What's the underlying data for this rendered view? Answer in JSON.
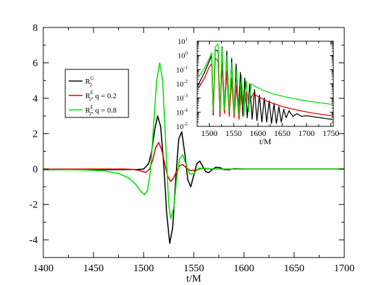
{
  "chart_data": [
    {
      "type": "line",
      "xlabel": "t/M",
      "ylabel": "",
      "xlim": [
        1400,
        1700
      ],
      "ylim": [
        -5,
        8
      ],
      "xticks": [
        1400,
        1450,
        1500,
        1550,
        1600,
        1650,
        1700
      ],
      "yticks": [
        -4,
        -2,
        0,
        2,
        4,
        6,
        8
      ],
      "legend_position": "middle-left",
      "series": [
        {
          "name": "R^G_2",
          "legend": {
            "base": "R",
            "sup": "G",
            "sub": "2",
            "suffix": ""
          },
          "color": "#000000",
          "points": [
            [
              1400,
              -0.04
            ],
            [
              1450,
              -0.04
            ],
            [
              1480,
              -0.03
            ],
            [
              1495,
              -0.02
            ],
            [
              1500,
              0.0
            ],
            [
              1505,
              0.3
            ],
            [
              1508,
              1.0
            ],
            [
              1511,
              2.2
            ],
            [
              1514,
              3.0
            ],
            [
              1517,
              2.4
            ],
            [
              1520,
              0.3
            ],
            [
              1523,
              -2.5
            ],
            [
              1526,
              -4.2
            ],
            [
              1529,
              -3.3
            ],
            [
              1532,
              -0.6
            ],
            [
              1535,
              1.7
            ],
            [
              1538,
              2.1
            ],
            [
              1541,
              0.9
            ],
            [
              1544,
              -0.6
            ],
            [
              1547,
              -1.0
            ],
            [
              1550,
              -0.35
            ],
            [
              1553,
              0.3
            ],
            [
              1556,
              0.45
            ],
            [
              1559,
              0.15
            ],
            [
              1562,
              -0.15
            ],
            [
              1565,
              -0.2
            ],
            [
              1568,
              -0.05
            ],
            [
              1572,
              0.1
            ],
            [
              1576,
              0.08
            ],
            [
              1580,
              -0.03
            ],
            [
              1585,
              -0.04
            ],
            [
              1590,
              0.02
            ],
            [
              1600,
              0.0
            ],
            [
              1700,
              0.0
            ]
          ]
        },
        {
          "name": "R^E_2, q = 0.2",
          "legend": {
            "base": "R",
            "sup": "E",
            "sub": "2",
            "suffix": ", q = 0.2"
          },
          "color": "#e00000",
          "points": [
            [
              1400,
              0.0
            ],
            [
              1480,
              0.0
            ],
            [
              1490,
              -0.02
            ],
            [
              1497,
              -0.1
            ],
            [
              1502,
              -0.2
            ],
            [
              1506,
              0.0
            ],
            [
              1509,
              0.5
            ],
            [
              1512,
              1.2
            ],
            [
              1515,
              1.5
            ],
            [
              1518,
              1.1
            ],
            [
              1521,
              0.3
            ],
            [
              1524,
              -0.4
            ],
            [
              1527,
              -0.7
            ],
            [
              1530,
              -0.5
            ],
            [
              1533,
              -0.1
            ],
            [
              1536,
              0.2
            ],
            [
              1539,
              0.25
            ],
            [
              1543,
              0.05
            ],
            [
              1547,
              -0.1
            ],
            [
              1552,
              -0.05
            ],
            [
              1558,
              0.03
            ],
            [
              1570,
              0.0
            ],
            [
              1700,
              0.0
            ]
          ]
        },
        {
          "name": "R^E_2, q = 0.8",
          "legend": {
            "base": "R",
            "sup": "E",
            "sub": "2",
            "suffix": ", q = 0.8"
          },
          "color": "#00e000",
          "points": [
            [
              1400,
              -0.02
            ],
            [
              1440,
              -0.05
            ],
            [
              1460,
              -0.1
            ],
            [
              1475,
              -0.25
            ],
            [
              1485,
              -0.5
            ],
            [
              1492,
              -0.85
            ],
            [
              1497,
              -1.25
            ],
            [
              1501,
              -1.45
            ],
            [
              1504,
              -1.2
            ],
            [
              1507,
              0.0
            ],
            [
              1510,
              2.5
            ],
            [
              1513,
              5.0
            ],
            [
              1516,
              6.0
            ],
            [
              1519,
              5.0
            ],
            [
              1522,
              1.5
            ],
            [
              1525,
              -2.0
            ],
            [
              1527,
              -2.8
            ],
            [
              1530,
              -2.2
            ],
            [
              1533,
              -0.5
            ],
            [
              1536,
              0.6
            ],
            [
              1539,
              0.8
            ],
            [
              1542,
              0.3
            ],
            [
              1546,
              -0.3
            ],
            [
              1550,
              -0.25
            ],
            [
              1555,
              0.05
            ],
            [
              1560,
              0.05
            ],
            [
              1570,
              0.0
            ],
            [
              1700,
              0.0
            ]
          ]
        }
      ]
    },
    {
      "type": "line",
      "xlabel": "t/M",
      "ylabel": "",
      "xlim": [
        1475,
        1755
      ],
      "ylim": [
        -5,
        1
      ],
      "yscale": "log",
      "xticks": [
        1500,
        1550,
        1600,
        1650,
        1700,
        1750
      ],
      "yticks": [
        -5,
        -4,
        -3,
        -2,
        -1,
        0,
        1
      ],
      "series": [
        {
          "color": "#000000",
          "points": [
            [
              1478,
              -2.0
            ],
            [
              1490,
              -1.2
            ],
            [
              1500,
              -0.4
            ],
            [
              1505,
              0.0
            ],
            [
              1508,
              -4.2
            ],
            [
              1512,
              0.4
            ],
            [
              1518,
              0.3
            ],
            [
              1522,
              -4.3
            ],
            [
              1526,
              0.6
            ],
            [
              1531,
              -3.9
            ],
            [
              1536,
              0.3
            ],
            [
              1541,
              -4.2
            ],
            [
              1546,
              -0.2
            ],
            [
              1551,
              -4.3
            ],
            [
              1555,
              -0.6
            ],
            [
              1560,
              -4.1
            ],
            [
              1564,
              -1.2
            ],
            [
              1569,
              -4.3
            ],
            [
              1573,
              -1.6
            ],
            [
              1578,
              -4.4
            ],
            [
              1583,
              -2.0
            ],
            [
              1588,
              -4.5
            ],
            [
              1593,
              -2.4
            ],
            [
              1598,
              -4.6
            ],
            [
              1603,
              -2.8
            ],
            [
              1608,
              -4.7
            ],
            [
              1613,
              -3.0
            ],
            [
              1618,
              -4.7
            ],
            [
              1623,
              -3.2
            ],
            [
              1628,
              -4.8
            ],
            [
              1633,
              -3.4
            ],
            [
              1638,
              -4.8
            ],
            [
              1643,
              -3.6
            ],
            [
              1648,
              -4.7
            ],
            [
              1653,
              -3.8
            ],
            [
              1658,
              -4.4
            ],
            [
              1664,
              -3.9
            ],
            [
              1672,
              -4.3
            ],
            [
              1680,
              -4.1
            ],
            [
              1690,
              -4.3
            ],
            [
              1700,
              -4.25
            ],
            [
              1720,
              -4.35
            ],
            [
              1740,
              -4.45
            ],
            [
              1752,
              -4.5
            ]
          ]
        },
        {
          "color": "#e00000",
          "points": [
            [
              1478,
              -2.3
            ],
            [
              1490,
              -1.6
            ],
            [
              1500,
              -0.8
            ],
            [
              1505,
              -0.6
            ],
            [
              1508,
              -4.0
            ],
            [
              1512,
              -0.2
            ],
            [
              1518,
              -0.4
            ],
            [
              1522,
              -4.2
            ],
            [
              1526,
              -0.6
            ],
            [
              1531,
              -4.1
            ],
            [
              1536,
              -1.1
            ],
            [
              1541,
              -4.3
            ],
            [
              1546,
              -1.6
            ],
            [
              1551,
              -4.4
            ],
            [
              1556,
              -2.1
            ],
            [
              1561,
              -4.5
            ],
            [
              1566,
              -2.4
            ],
            [
              1571,
              -3.8
            ],
            [
              1576,
              -2.6
            ],
            [
              1581,
              -3.4
            ],
            [
              1590,
              -2.7
            ],
            [
              1600,
              -2.9
            ],
            [
              1620,
              -3.25
            ],
            [
              1650,
              -3.6
            ],
            [
              1680,
              -3.85
            ],
            [
              1710,
              -4.05
            ],
            [
              1740,
              -4.2
            ],
            [
              1752,
              -4.25
            ]
          ]
        },
        {
          "color": "#00e000",
          "points": [
            [
              1478,
              -1.5
            ],
            [
              1490,
              -0.9
            ],
            [
              1500,
              -0.2
            ],
            [
              1505,
              0.2
            ],
            [
              1508,
              -3.8
            ],
            [
              1512,
              0.6
            ],
            [
              1518,
              0.8
            ],
            [
              1522,
              -3.9
            ],
            [
              1526,
              0.5
            ],
            [
              1531,
              -3.8
            ],
            [
              1536,
              0.0
            ],
            [
              1541,
              -4.0
            ],
            [
              1546,
              -0.5
            ],
            [
              1551,
              -4.1
            ],
            [
              1556,
              -1.0
            ],
            [
              1561,
              -4.2
            ],
            [
              1566,
              -1.4
            ],
            [
              1571,
              -4.2
            ],
            [
              1576,
              -1.8
            ],
            [
              1581,
              -4.0
            ],
            [
              1586,
              -2.0
            ],
            [
              1595,
              -2.2
            ],
            [
              1610,
              -2.45
            ],
            [
              1630,
              -2.7
            ],
            [
              1660,
              -2.95
            ],
            [
              1690,
              -3.15
            ],
            [
              1720,
              -3.3
            ],
            [
              1752,
              -3.45
            ]
          ]
        }
      ]
    }
  ]
}
